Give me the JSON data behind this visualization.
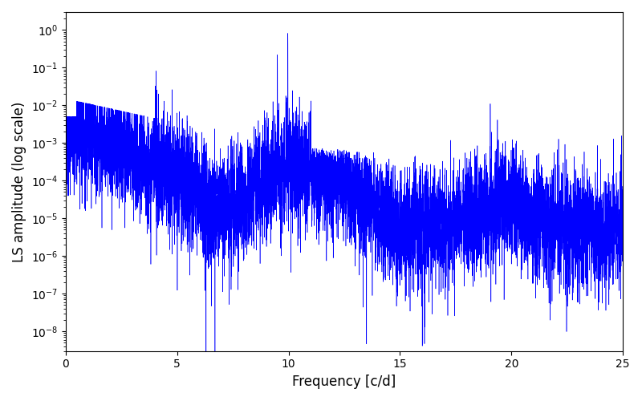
{
  "line_color": "#0000ff",
  "xlabel": "Frequency [c/d]",
  "ylabel": "LS amplitude (log scale)",
  "xlim": [
    0,
    25
  ],
  "ylim_low": 3e-09,
  "ylim_high": 3.0,
  "yscale": "log",
  "xticks": [
    0,
    5,
    10,
    15,
    20,
    25
  ],
  "figsize": [
    8.0,
    5.0
  ],
  "dpi": 100,
  "seed": 12345,
  "n_points": 8000,
  "freq_max": 25.0,
  "peak1_freq": 9.97,
  "peak1_amp": 0.82,
  "peak1b_freq": 9.5,
  "peak1b_amp": 0.22,
  "peak2_freq": 19.05,
  "peak2_amp": 0.011,
  "peak2b_freq": 19.4,
  "peak2b_amp": 0.0003,
  "background_color": "#ffffff"
}
